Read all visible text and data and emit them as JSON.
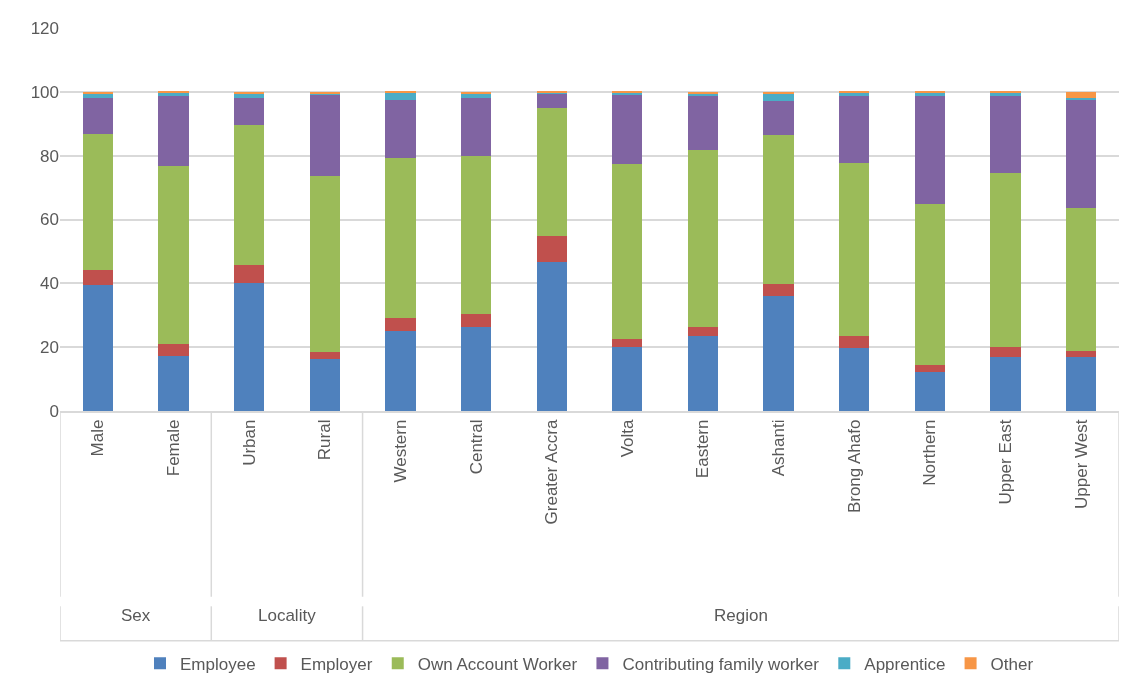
{
  "chart_data": {
    "type": "bar",
    "stacked": true,
    "categories": [
      "Male",
      "Female",
      "Urban",
      "Rural",
      "Western",
      "Central",
      "Greater Accra",
      "Volta",
      "Eastern",
      "Ashanti",
      "Brong Ahafo",
      "Northern",
      "Upper East",
      "Upper West"
    ],
    "series": [
      {
        "name": "Employee",
        "color": "#4f81bd",
        "values": [
          39.5,
          17.3,
          40,
          16.2,
          25.2,
          26.3,
          46.7,
          20,
          23.4,
          36.1,
          19.6,
          12.2,
          16.9,
          16.9
        ]
      },
      {
        "name": "Employer",
        "color": "#c0504d",
        "values": [
          4.8,
          3.7,
          5.9,
          2.4,
          3.9,
          4,
          8.2,
          2.6,
          2.9,
          3.8,
          3.8,
          2.3,
          3,
          2
        ]
      },
      {
        "name": "Own Account Worker",
        "color": "#9bbb59",
        "values": [
          42.4,
          55.8,
          43.7,
          55,
          50.3,
          49.6,
          39.9,
          54.7,
          55.5,
          46.5,
          54.3,
          50.4,
          54.6,
          44.8
        ]
      },
      {
        "name": "Contributing family worker",
        "color": "#8064a2",
        "values": [
          11.3,
          22,
          8.5,
          25.3,
          18,
          18.2,
          4.8,
          21.9,
          17.2,
          10.8,
          21.1,
          33.9,
          24.3,
          34
        ]
      },
      {
        "name": "Apprentice",
        "color": "#4bacc6",
        "values": [
          1.5,
          1,
          1.4,
          0.7,
          2.4,
          1.5,
          0.1,
          0.6,
          0.6,
          2.4,
          1,
          0.9,
          1,
          0.5
        ]
      },
      {
        "name": "Other",
        "color": "#f79646",
        "values": [
          0.5,
          0.2,
          0.5,
          0.4,
          0.2,
          0.4,
          0.3,
          0.2,
          0.4,
          0.4,
          0.2,
          0.3,
          0.2,
          1.8
        ]
      }
    ],
    "ylim": [
      0,
      120
    ],
    "yticks": [
      0,
      20,
      40,
      60,
      80,
      100,
      120
    ],
    "grid": "y",
    "legend": "bottom",
    "annotations": [
      "Sex",
      "Locality",
      "Region"
    ]
  }
}
